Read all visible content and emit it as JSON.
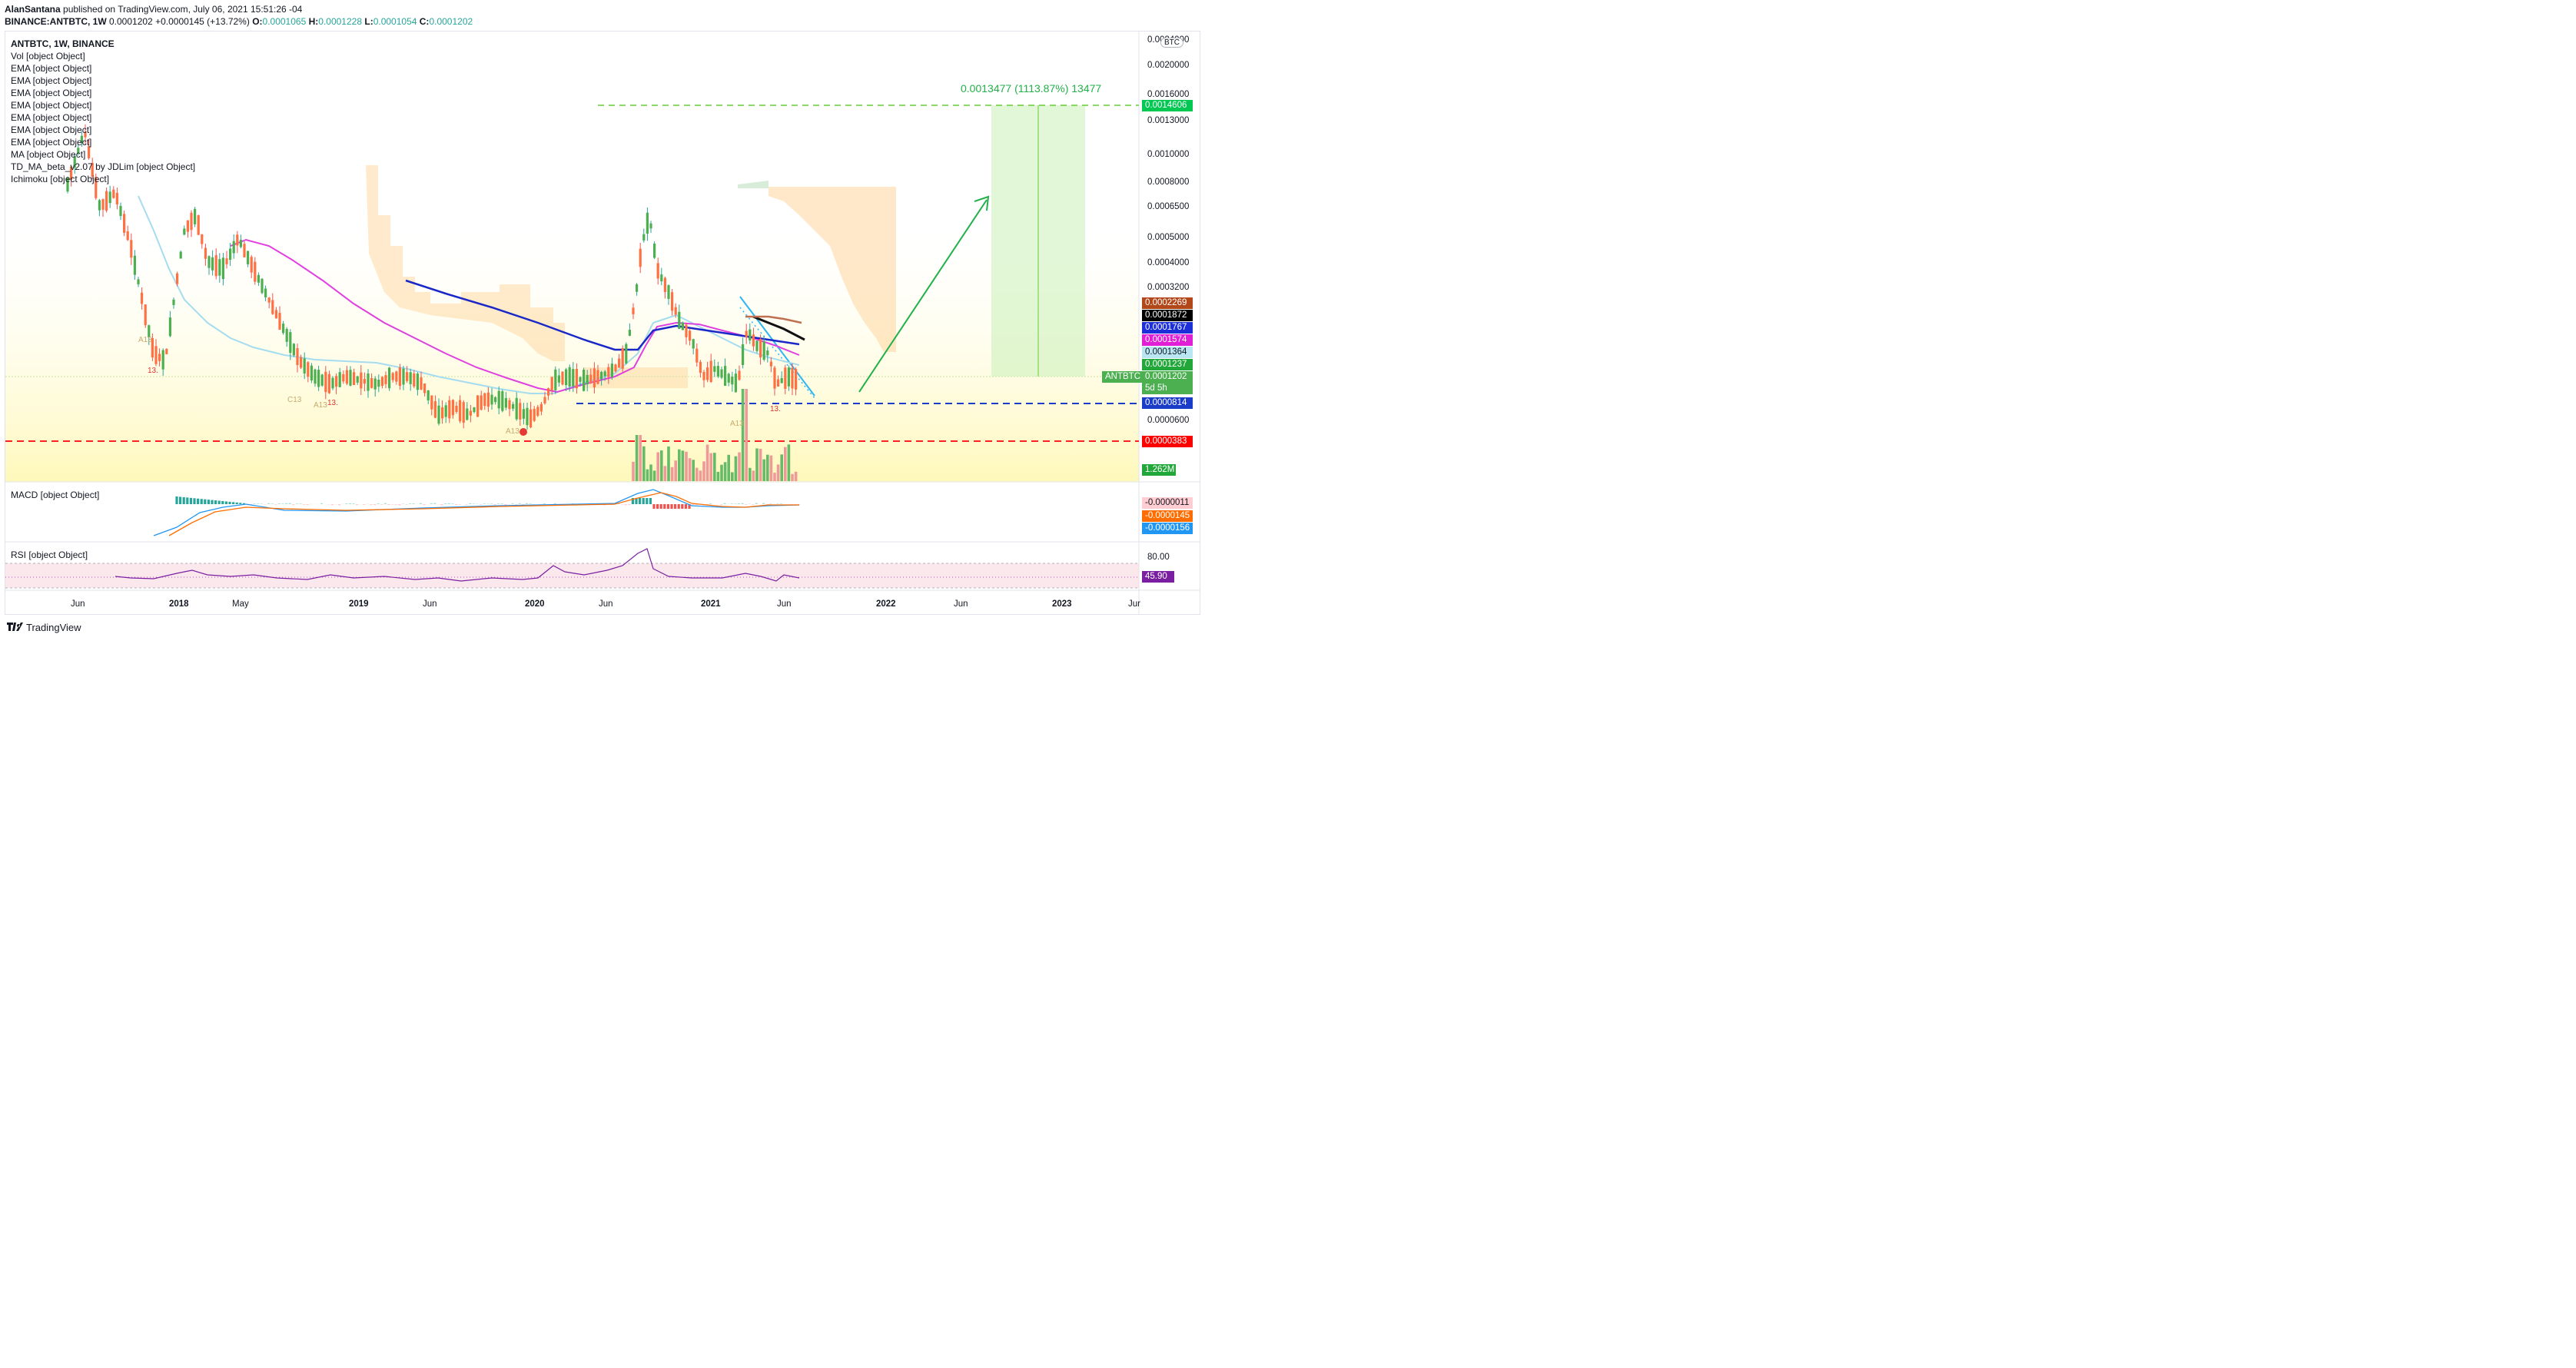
{
  "header": {
    "author": "AlanSantana",
    "published": "published on TradingView.com, July 06, 2021 15:51:26 -04",
    "symbol_line": "BINANCE:ANTBTC, 1W",
    "last": "0.0001202",
    "change": "+0.0000145 (+13.72%)",
    "o_label": "O:",
    "o_value": "0.0001065",
    "h_label": "H:",
    "h_value": "0.0001228",
    "l_label": "L:",
    "l_value": "0.0001054",
    "c_label": "C:",
    "c_value": "0.0001202"
  },
  "legend": {
    "symbol": "ANTBTC, 1W, BINANCE",
    "items": [
      "Vol [object Object]",
      "EMA [object Object]",
      "EMA [object Object]",
      "EMA [object Object]",
      "EMA [object Object]",
      "EMA [object Object]",
      "EMA [object Object]",
      "EMA [object Object]",
      "MA [object Object]",
      "TD_MA_beta_v2.07 by JDLim [object Object]",
      "Ichimoku [object Object]"
    ]
  },
  "macd_pane": {
    "label": "MACD [object Object]",
    "values": [
      "-0.0000011",
      "-0.0000145",
      "-0.0000156"
    ]
  },
  "rsi_pane": {
    "label": "RSI [object Object]",
    "level": "80.00",
    "value": "45.90"
  },
  "currency": "BTC",
  "price_axis": [
    "0.0024000",
    "0.0020000",
    "0.0016000",
    "0.0013000",
    "0.0010000",
    "0.0008000",
    "0.0006500",
    "0.0005000",
    "0.0004000",
    "0.0003200",
    "0.0000600"
  ],
  "price_tags": [
    {
      "text": "0.0014606",
      "color": "#00c853"
    },
    {
      "text": "0.0002269",
      "color": "#b2471a"
    },
    {
      "text": "0.0001872",
      "color": "#000000"
    },
    {
      "text": "0.0001767",
      "color": "#1c2fd8"
    },
    {
      "text": "0.0001574",
      "color": "#e01fd6"
    },
    {
      "text": "0.0001364",
      "color": "#b9e6f2"
    },
    {
      "text": "0.0001237",
      "color": "#22a83a"
    },
    {
      "text": "0.0001202",
      "color": "#4caf50"
    },
    {
      "text": "0.0000814",
      "color": "#1a3cc9"
    },
    {
      "text": "0.0000383",
      "color": "#ff0000"
    },
    {
      "text": "1.262M",
      "color": "#22a83a"
    }
  ],
  "countdown": "5d 5h",
  "symbol_tag": "ANTBTC",
  "target_label": "0.0013477 (1113.87%) 13477",
  "time_axis": [
    "Jun",
    "2018",
    "May",
    "2019",
    "Jun",
    "2020",
    "Jun",
    "2021",
    "Jun",
    "2022",
    "Jun",
    "2023",
    "Jur"
  ],
  "td_labels": [
    "A13",
    "13.",
    "C13",
    "A13",
    "13.",
    "A13",
    "13.",
    "A13"
  ],
  "footer": {
    "brand": "TradingView"
  },
  "colors": {
    "green": "#26a69a",
    "red": "#ef5350",
    "ema_magenta": "#e040e0",
    "ma_blue": "#1a28c8",
    "target_green": "#66cc33",
    "support_blue": "#1a3cc9",
    "support_red": "#ff2020"
  }
}
